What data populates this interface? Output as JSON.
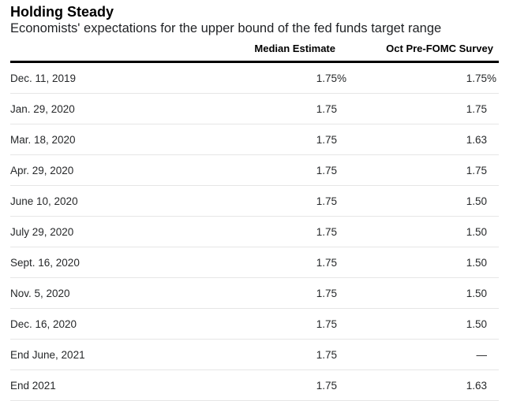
{
  "header": {
    "title": "Holding Steady",
    "subtitle": "Economists' expectations for the upper bound of the fed funds target range"
  },
  "table": {
    "columns": [
      "Median Estimate",
      "Oct Pre-FOMC Survey"
    ],
    "rows": [
      {
        "date": "Dec. 11, 2019",
        "median": "1.75",
        "median_suffix": "%",
        "survey": "1.75",
        "survey_suffix": "%"
      },
      {
        "date": "Jan. 29, 2020",
        "median": "1.75",
        "median_suffix": "",
        "survey": "1.75",
        "survey_suffix": ""
      },
      {
        "date": "Mar. 18, 2020",
        "median": "1.75",
        "median_suffix": "",
        "survey": "1.63",
        "survey_suffix": ""
      },
      {
        "date": "Apr. 29, 2020",
        "median": "1.75",
        "median_suffix": "",
        "survey": "1.75",
        "survey_suffix": ""
      },
      {
        "date": "June 10, 2020",
        "median": "1.75",
        "median_suffix": "",
        "survey": "1.50",
        "survey_suffix": ""
      },
      {
        "date": "July 29, 2020",
        "median": "1.75",
        "median_suffix": "",
        "survey": "1.50",
        "survey_suffix": ""
      },
      {
        "date": "Sept. 16, 2020",
        "median": "1.75",
        "median_suffix": "",
        "survey": "1.50",
        "survey_suffix": ""
      },
      {
        "date": "Nov. 5, 2020",
        "median": "1.75",
        "median_suffix": "",
        "survey": "1.50",
        "survey_suffix": ""
      },
      {
        "date": "Dec. 16, 2020",
        "median": "1.75",
        "median_suffix": "",
        "survey": "1.50",
        "survey_suffix": ""
      },
      {
        "date": "End June, 2021",
        "median": "1.75",
        "median_suffix": "",
        "survey": "—",
        "survey_suffix": ""
      },
      {
        "date": "End 2021",
        "median": "1.75",
        "median_suffix": "",
        "survey": "1.63",
        "survey_suffix": ""
      }
    ]
  },
  "colors": {
    "header_rule": "#000000",
    "row_divider": "#e6e6e6",
    "title_text": "#000000",
    "body_text": "#26282a"
  },
  "chart_data": {
    "type": "table",
    "title": "Holding Steady",
    "subtitle": "Economists' expectations for the upper bound of the fed funds target range",
    "categories": [
      "Dec. 11, 2019",
      "Jan. 29, 2020",
      "Mar. 18, 2020",
      "Apr. 29, 2020",
      "June 10, 2020",
      "July 29, 2020",
      "Sept. 16, 2020",
      "Nov. 5, 2020",
      "Dec. 16, 2020",
      "End June, 2021",
      "End 2021"
    ],
    "series": [
      {
        "name": "Median Estimate",
        "values": [
          "1.75%",
          "1.75",
          "1.75",
          "1.75",
          "1.75",
          "1.75",
          "1.75",
          "1.75",
          "1.75",
          "1.75",
          "1.75"
        ]
      },
      {
        "name": "Oct Pre-FOMC Survey",
        "values": [
          "1.75%",
          "1.75",
          "1.63",
          "1.75",
          "1.50",
          "1.50",
          "1.50",
          "1.50",
          "1.50",
          "—",
          "1.63"
        ]
      }
    ],
    "units": "percent (upper bound of fed funds target range)"
  }
}
